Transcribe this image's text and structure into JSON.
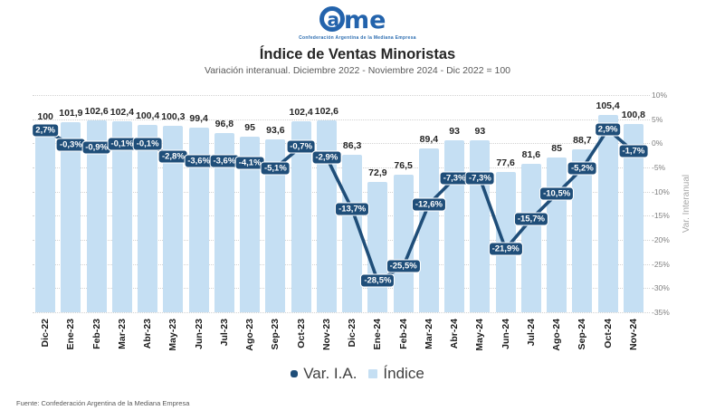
{
  "logo": {
    "text_a": "a",
    "text_me": "me",
    "tagline": "Confederación Argentina de la Mediana Empresa",
    "color": "#2363ac"
  },
  "header": {
    "title": "Índice de Ventas Minoristas",
    "subtitle": "Variación interanual. Diciembre 2022 - Noviembre 2024 - Dic 2022 = 100"
  },
  "chart_data": {
    "type": "bar+line combo",
    "categories": [
      "Dic-22",
      "Ene-23",
      "Feb-23",
      "Mar-23",
      "Abr-23",
      "May-23",
      "Jun-23",
      "Jul-23",
      "Ago-23",
      "Sep-23",
      "Oct-23",
      "Nov-23",
      "Dic-23",
      "Ene-24",
      "Feb-24",
      "Mar-24",
      "Abr-24",
      "May-24",
      "Jun-24",
      "Jul-24",
      "Ago-24",
      "Sep-24",
      "Oct-24",
      "Nov-24"
    ],
    "series": [
      {
        "name": "Índice",
        "type": "bar",
        "color": "#c5dff3",
        "values": [
          100,
          101.9,
          102.6,
          102.4,
          100.4,
          100.3,
          99.4,
          96.8,
          95,
          93.6,
          102.4,
          102.6,
          86.3,
          72.9,
          76.5,
          89.4,
          93,
          93,
          77.6,
          81.6,
          85,
          88.7,
          105.4,
          100.8
        ],
        "labels": [
          "100",
          "101,9",
          "102,6",
          "102,4",
          "100,4",
          "100,3",
          "99,4",
          "96,8",
          "95",
          "93,6",
          "102,4",
          "102,6",
          "86,3",
          "72,9",
          "76,5",
          "89,4",
          "93",
          "93",
          "77,6",
          "81,6",
          "85",
          "88,7",
          "105,4",
          "100,8"
        ]
      },
      {
        "name": "Var. I.A.",
        "type": "line",
        "color": "#1f4e79",
        "values": [
          2.7,
          -0.3,
          -0.9,
          -0.1,
          -0.1,
          -2.8,
          -3.6,
          -3.6,
          -4.1,
          -5.1,
          -0.7,
          -2.9,
          -13.7,
          -28.5,
          -25.5,
          -12.6,
          -7.3,
          -7.3,
          -21.9,
          -15.7,
          -10.5,
          -5.2,
          2.9,
          -1.7
        ],
        "labels": [
          "2,7%",
          "-0,3%",
          "-0,9%",
          "-0,1%",
          "-0,1%",
          "-2,8%",
          "-3,6%",
          "-3,6%",
          "-4,1%",
          "-5,1%",
          "-0,7%",
          "-2,9%",
          "-13,7%",
          "-28,5%",
          "-25,5%",
          "-12,6%",
          "-7,3%",
          "-7,3%",
          "-21,9%",
          "-15,7%",
          "-10,5%",
          "-5,2%",
          "2,9%",
          "-1,7%"
        ]
      }
    ],
    "right_axis": {
      "title": "Var. Interanual",
      "max": 10,
      "min": -35,
      "ticks": [
        "10%",
        "5%",
        "0%",
        "-5%",
        "-10%",
        "-15%",
        "-20%",
        "-25%",
        "-30%",
        "-35%"
      ]
    },
    "bar_axis": {
      "min": 10,
      "max": 115
    },
    "grid": "horizontal dotted",
    "legend_position": "bottom",
    "legend": [
      {
        "label": "Var. I.A.",
        "color": "#1f4e79",
        "marker": "square-rounded"
      },
      {
        "label": "Índice",
        "color": "#c5dff3",
        "marker": "square"
      }
    ]
  },
  "footer": {
    "source": "Fuente: Confederación Argentina de la Mediana Empresa"
  }
}
